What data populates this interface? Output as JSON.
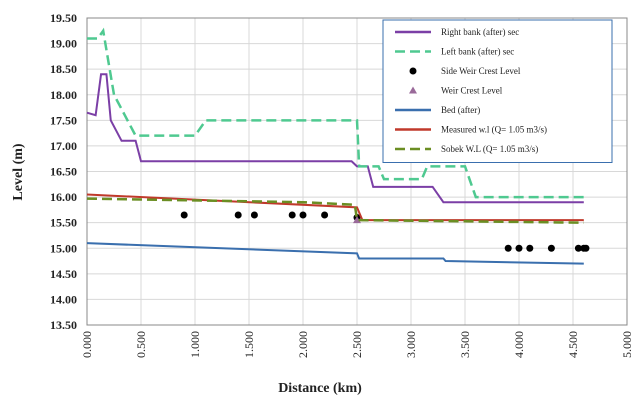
{
  "chart_data": {
    "type": "line",
    "xlabel": "Distance (km)",
    "ylabel": "Level (m)",
    "xlim": [
      0,
      5
    ],
    "ylim": [
      13.5,
      19.5
    ],
    "grid": true,
    "legend": "upper right",
    "xticks": [
      {
        "value": 0,
        "label": "0.000"
      },
      {
        "value": 0.5,
        "label": "0.500"
      },
      {
        "value": 1,
        "label": "1.000"
      },
      {
        "value": 1.5,
        "label": "1.500"
      },
      {
        "value": 2,
        "label": "2.000"
      },
      {
        "value": 2.5,
        "label": "2.500"
      },
      {
        "value": 3,
        "label": "3.000"
      },
      {
        "value": 3.5,
        "label": "3.500"
      },
      {
        "value": 4,
        "label": "4.000"
      },
      {
        "value": 4.5,
        "label": "4.500"
      },
      {
        "value": 5,
        "label": "5.000"
      }
    ],
    "yticks": [
      {
        "value": 13.5,
        "label": "13.50"
      },
      {
        "value": 14,
        "label": "14.00"
      },
      {
        "value": 14.5,
        "label": "14.50"
      },
      {
        "value": 15,
        "label": "15.00"
      },
      {
        "value": 15.5,
        "label": "15.50"
      },
      {
        "value": 16,
        "label": "16.00"
      },
      {
        "value": 16.5,
        "label": "16.50"
      },
      {
        "value": 17,
        "label": "17.00"
      },
      {
        "value": 17.5,
        "label": "17.50"
      },
      {
        "value": 18,
        "label": "18.00"
      },
      {
        "value": 18.5,
        "label": "18.50"
      },
      {
        "value": 19,
        "label": "19.00"
      },
      {
        "value": 19.5,
        "label": "19.50"
      }
    ],
    "series": [
      {
        "name": "Right bank (after) sec",
        "color": "#7b3fa6",
        "style": "solid",
        "x": [
          0,
          0.08,
          0.13,
          0.18,
          0.22,
          0.27,
          0.32,
          0.45,
          0.5,
          2.45,
          2.5,
          2.6,
          2.65,
          3.2,
          3.3,
          4.6
        ],
        "values": [
          17.65,
          17.6,
          18.4,
          18.4,
          17.5,
          17.3,
          17.1,
          17.1,
          16.7,
          16.7,
          16.6,
          16.6,
          16.2,
          16.2,
          15.9,
          15.9
        ]
      },
      {
        "name": "Left bank (after) sec",
        "color": "#4fc990",
        "style": "dash",
        "x": [
          0,
          0.1,
          0.15,
          0.25,
          0.35,
          0.45,
          1.0,
          1.1,
          2.5,
          2.52,
          2.7,
          2.75,
          3.1,
          3.15,
          3.5,
          3.6,
          4.6
        ],
        "values": [
          19.1,
          19.1,
          19.25,
          18.0,
          17.6,
          17.2,
          17.2,
          17.5,
          17.5,
          16.6,
          16.6,
          16.35,
          16.35,
          16.6,
          16.6,
          16.0,
          16.0
        ]
      },
      {
        "name": "Side Weir Crest Level",
        "color": "#000000",
        "marker": "circle",
        "x": [
          0.9,
          1.4,
          1.55,
          1.9,
          2.0,
          2.2,
          2.5,
          3.9,
          4.0,
          4.1,
          4.3,
          4.55,
          4.6,
          4.62
        ],
        "values": [
          15.65,
          15.65,
          15.65,
          15.65,
          15.65,
          15.65,
          15.6,
          15.0,
          15.0,
          15.0,
          15.0,
          15.0,
          15.0,
          15.0
        ]
      },
      {
        "name": "Weir Crest Level",
        "color": "#9a6a9a",
        "marker": "triangle",
        "x": [
          2.5
        ],
        "values": [
          15.55
        ]
      },
      {
        "name": "Bed (after)",
        "color": "#3a6fae",
        "style": "solid",
        "x": [
          0,
          2.5,
          2.52,
          3.3,
          3.32,
          4.6
        ],
        "values": [
          15.1,
          14.9,
          14.8,
          14.8,
          14.75,
          14.7
        ]
      },
      {
        "name": "Measured w.l (Q= 1.05 m3/s)",
        "color": "#c0392b",
        "style": "solid",
        "x": [
          0,
          2.5,
          2.55,
          4.6
        ],
        "values": [
          16.05,
          15.8,
          15.55,
          15.55
        ]
      },
      {
        "name": "Sobek W.L (Q= 1.05 m3/s)",
        "color": "#6b8e23",
        "style": "dash",
        "x": [
          0,
          2.0,
          2.48,
          2.5,
          4.6
        ],
        "values": [
          15.97,
          15.9,
          15.85,
          15.55,
          15.5
        ]
      }
    ]
  }
}
